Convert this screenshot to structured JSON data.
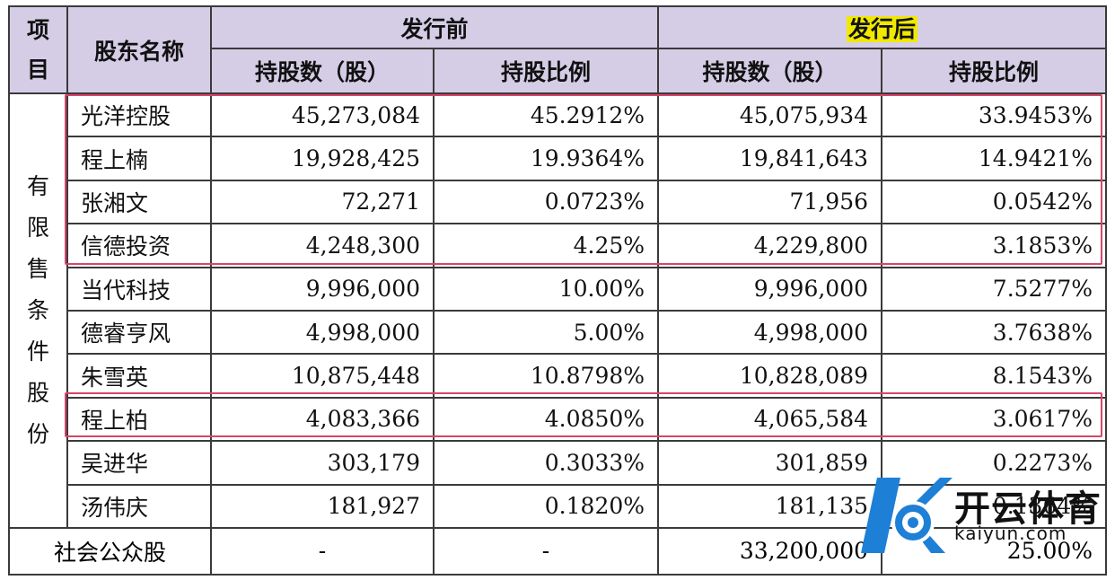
{
  "header": {
    "item": "项目",
    "shareholder": "股东名称",
    "before": "发行前",
    "after": "发行后",
    "shares": "持股数（股）",
    "ratio": "持股比例"
  },
  "group_label": [
    "有",
    "限",
    "售",
    "条",
    "件",
    "股",
    "份"
  ],
  "rows": [
    {
      "name": "光洋控股",
      "before_shares": "45,273,084",
      "before_ratio": "45.2912%",
      "after_shares": "45,075,934",
      "after_ratio": "33.9453%"
    },
    {
      "name": "程上楠",
      "before_shares": "19,928,425",
      "before_ratio": "19.9364%",
      "after_shares": "19,841,643",
      "after_ratio": "14.9421%"
    },
    {
      "name": "张湘文",
      "before_shares": "72,271",
      "before_ratio": "0.0723%",
      "after_shares": "71,956",
      "after_ratio": "0.0542%"
    },
    {
      "name": "信德投资",
      "before_shares": "4,248,300",
      "before_ratio": "4.25%",
      "after_shares": "4,229,800",
      "after_ratio": "3.1853%"
    },
    {
      "name": "当代科技",
      "before_shares": "9,996,000",
      "before_ratio": "10.00%",
      "after_shares": "9,996,000",
      "after_ratio": "7.5277%"
    },
    {
      "name": "德睿亨风",
      "before_shares": "4,998,000",
      "before_ratio": "5.00%",
      "after_shares": "4,998,000",
      "after_ratio": "3.7638%"
    },
    {
      "name": "朱雪英",
      "before_shares": "10,875,448",
      "before_ratio": "10.8798%",
      "after_shares": "10,828,089",
      "after_ratio": "8.1543%"
    },
    {
      "name": "程上柏",
      "before_shares": "4,083,366",
      "before_ratio": "4.0850%",
      "after_shares": "4,065,584",
      "after_ratio": "3.0617%"
    },
    {
      "name": "吴进华",
      "before_shares": "303,179",
      "before_ratio": "0.3033%",
      "after_shares": "301,859",
      "after_ratio": "0.2273%"
    },
    {
      "name": "汤伟庆",
      "before_shares": "181,927",
      "before_ratio": "0.1820%",
      "after_shares": "181,135",
      "after_ratio": "0.1364%"
    }
  ],
  "public_row": {
    "label": "社会公众股",
    "before_shares": "-",
    "before_ratio": "-",
    "after_shares": "33,200,000",
    "after_ratio": "25.00%"
  },
  "watermark": {
    "zh": "开云体育",
    "en": "kaiyun.com",
    "icon": "kaiyun-logo-icon"
  },
  "colors": {
    "header_bg": "#d5cde6",
    "highlight": "#f0e800",
    "box": "#d8456b",
    "logo_blue": "#1e7fd6"
  }
}
